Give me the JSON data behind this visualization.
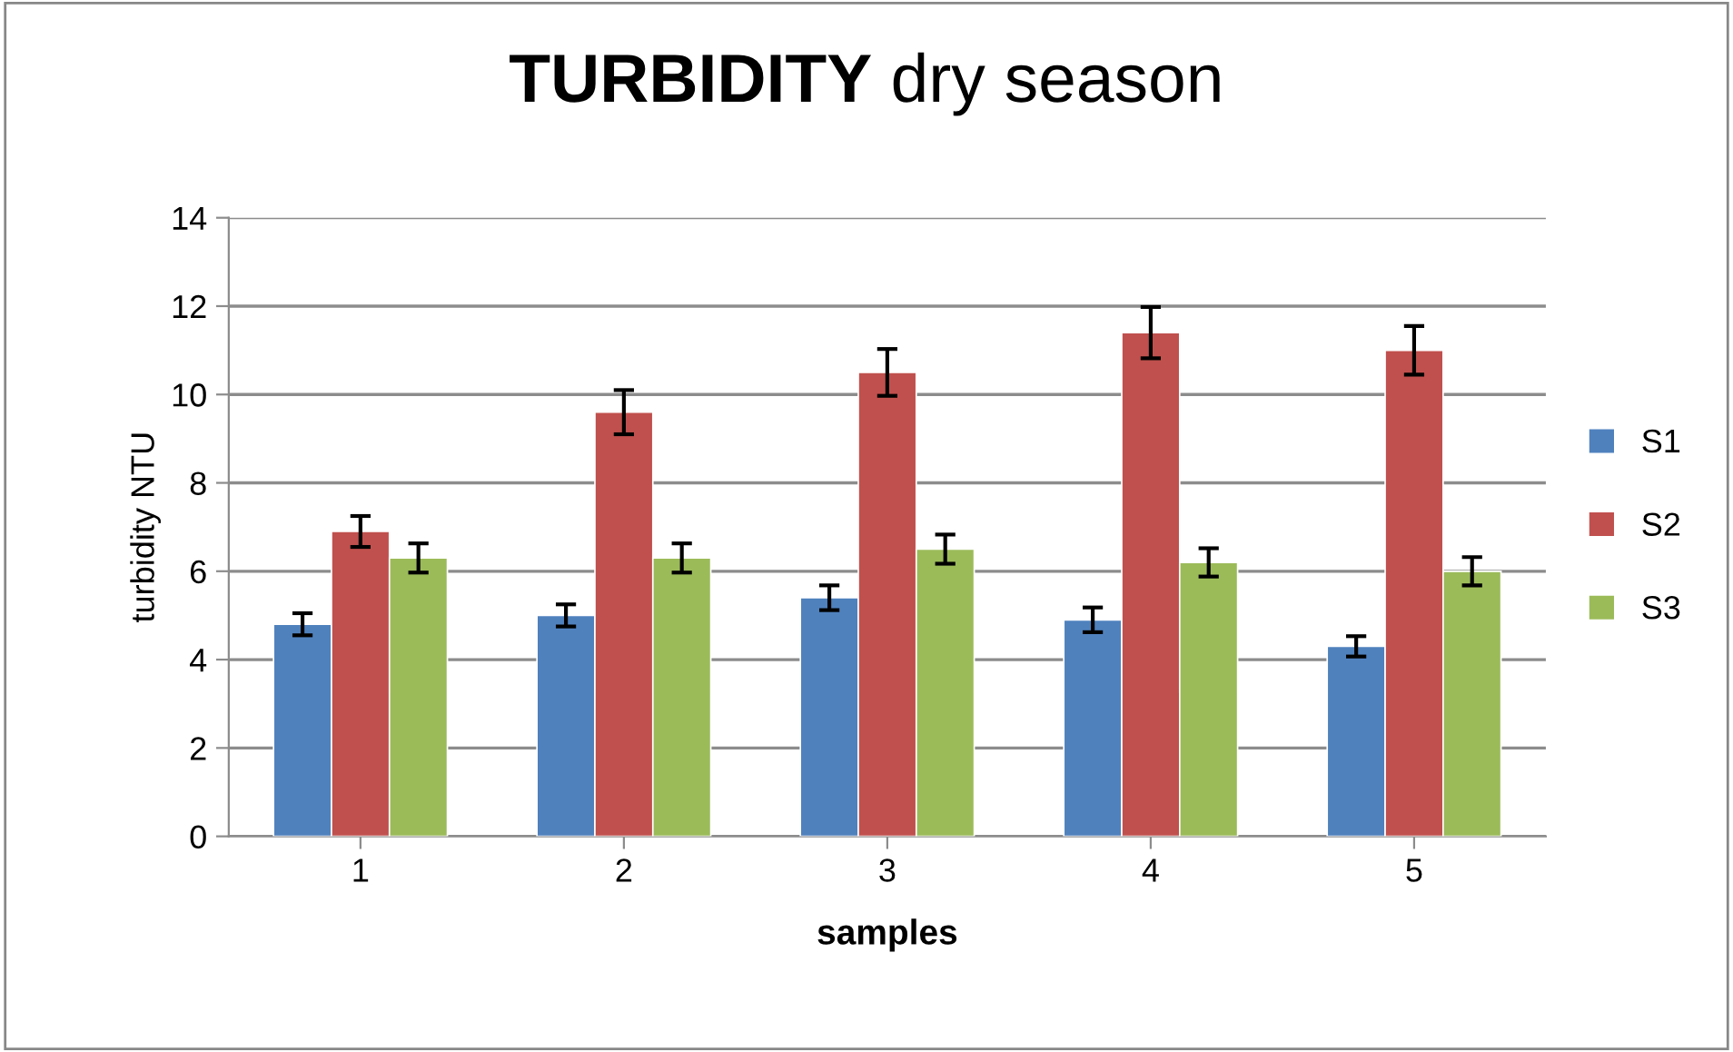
{
  "chart_data": {
    "type": "bar",
    "title": "TURBIDITY dry season",
    "xlabel": "samples",
    "ylabel": "turbidity NTU",
    "categories": [
      "1",
      "2",
      "3",
      "4",
      "5"
    ],
    "series": [
      {
        "name": "S1",
        "color": "#4f81bd",
        "values": [
          4.8,
          5.0,
          5.4,
          4.9,
          4.3
        ],
        "errors": [
          0.25,
          0.25,
          0.28,
          0.28,
          0.23
        ]
      },
      {
        "name": "S2",
        "color": "#c0504d",
        "values": [
          6.9,
          9.6,
          10.5,
          11.4,
          11.0
        ],
        "errors": [
          0.35,
          0.5,
          0.53,
          0.58,
          0.55
        ]
      },
      {
        "name": "S3",
        "color": "#9bbb59",
        "values": [
          6.3,
          6.3,
          6.5,
          6.2,
          6.0
        ],
        "errors": [
          0.33,
          0.33,
          0.33,
          0.32,
          0.32
        ]
      }
    ],
    "ylim": [
      0,
      14
    ],
    "yticks": [
      0,
      2,
      4,
      6,
      8,
      10,
      12,
      14
    ],
    "grid": "y",
    "legend": "right"
  }
}
